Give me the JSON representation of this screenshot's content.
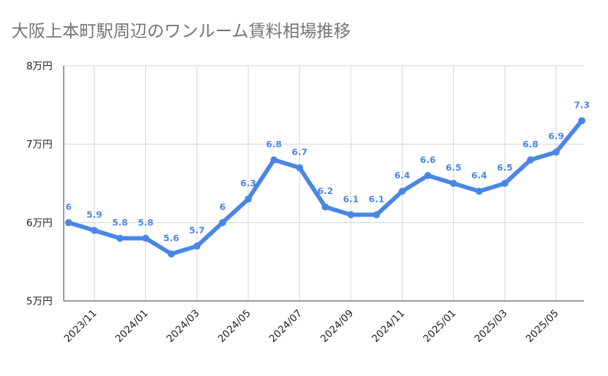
{
  "chart_data": {
    "type": "line",
    "title": "大阪上本町駅周辺のワンルーム賃料相場推移",
    "xlabel": "",
    "ylabel": "",
    "x": [
      "2023/10",
      "2023/11",
      "2023/12",
      "2024/01",
      "2024/02",
      "2024/03",
      "2024/04",
      "2024/05",
      "2024/06",
      "2024/07",
      "2024/08",
      "2024/09",
      "2024/10",
      "2024/11",
      "2024/12",
      "2025/01",
      "2025/02",
      "2025/03",
      "2025/04",
      "2025/05",
      "2025/06"
    ],
    "x_tick_labels": [
      "2023/11",
      "2024/01",
      "2024/03",
      "2024/05",
      "2024/07",
      "2024/09",
      "2024/11",
      "2025/01",
      "2025/03",
      "2025/05"
    ],
    "y_tick_labels": [
      "5万円",
      "6万円",
      "7万円",
      "8万円"
    ],
    "y_ticks": [
      5,
      6,
      7,
      8
    ],
    "ylim": [
      5,
      8
    ],
    "series": [
      {
        "values": [
          6,
          5.9,
          5.8,
          5.8,
          5.6,
          5.7,
          6,
          6.3,
          6.8,
          6.7,
          6.2,
          6.1,
          6.1,
          6.4,
          6.6,
          6.5,
          6.4,
          6.5,
          6.8,
          6.9,
          7.3
        ],
        "labels": [
          "6",
          "5.9",
          "5.8",
          "5.8",
          "5.6",
          "5.7",
          "6",
          "6.3",
          "6.8",
          "6.7",
          "6.2",
          "6.1",
          "6.1",
          "6.4",
          "6.6",
          "6.5",
          "6.4",
          "6.5",
          "6.8",
          "6.9",
          "7.3"
        ],
        "color": "#4a86e8"
      }
    ],
    "grid": true,
    "legend": "none",
    "gridline_color": "#d3d3d3",
    "axis_color": "#333333"
  }
}
